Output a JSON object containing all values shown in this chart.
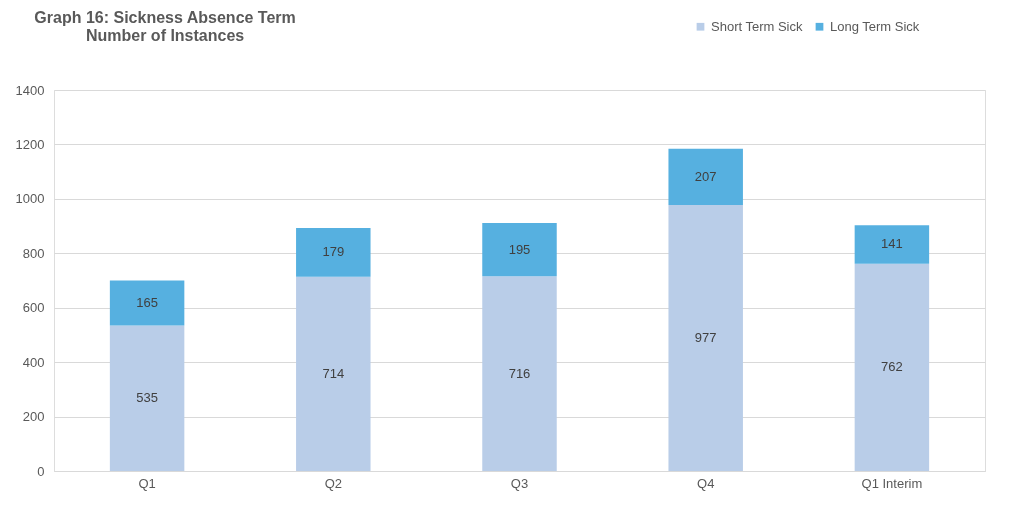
{
  "chart_data": {
    "type": "bar",
    "stacked": true,
    "title": "Graph 16: Sickness Absence Term\nNumber of Instances",
    "categories": [
      "Q1",
      "Q2",
      "Q3",
      "Q4",
      "Q1  Interim"
    ],
    "series": [
      {
        "name": "Short Term Sick",
        "color": "#b9cde8",
        "values": [
          535,
          714,
          716,
          977,
          762
        ]
      },
      {
        "name": "Long Term Sick",
        "color": "#56b0e0",
        "values": [
          165,
          179,
          195,
          207,
          141
        ]
      }
    ],
    "ylim": [
      0,
      1400
    ],
    "yticks": [
      0,
      200,
      400,
      600,
      800,
      1000,
      1200,
      1400
    ],
    "grid": "y",
    "legend": "top right",
    "data_labels": true
  }
}
